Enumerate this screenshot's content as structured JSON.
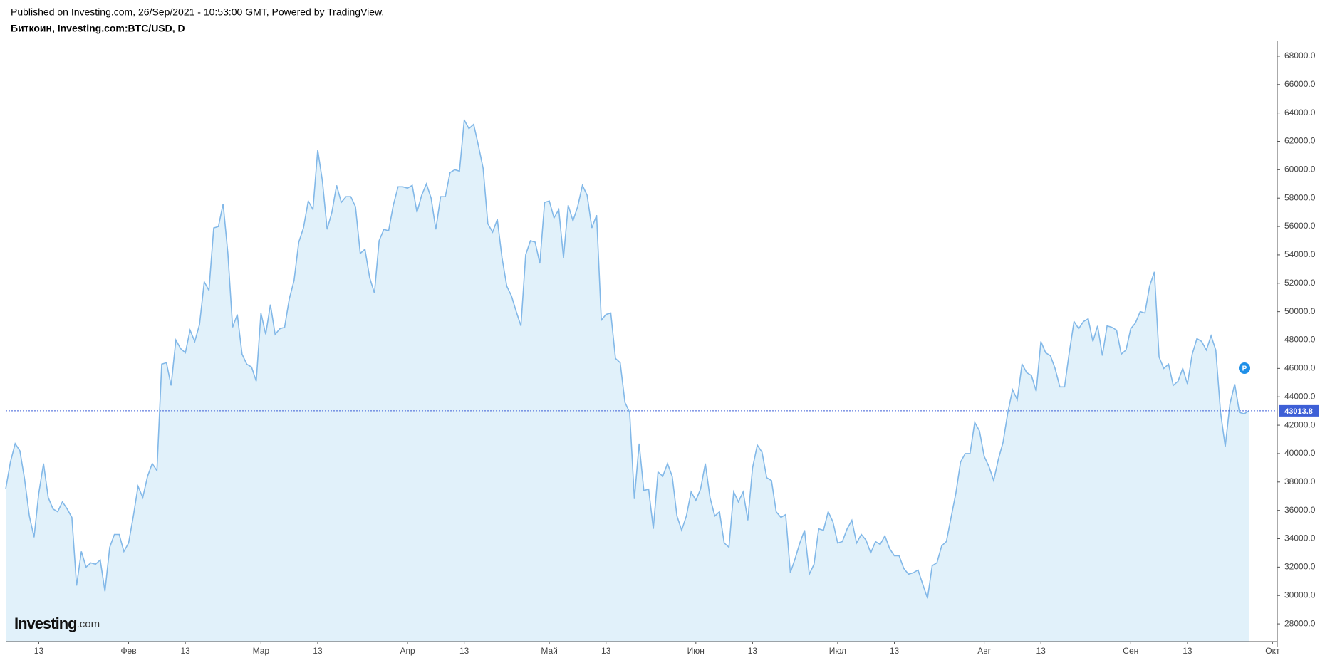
{
  "chart_data": {
    "type": "area",
    "published": "Published on Investing.com, 26/Sep/2021 - 10:53:00 GMT, Powered by TradingView.",
    "title": "Биткоин, Investing.com:BTC/USD, D",
    "logo": {
      "brand": "Investing",
      "suffix": ".com"
    },
    "color": "#82b8e8",
    "fill": "#e1f1fa",
    "last_line_color": "#3d5fd6",
    "x": [
      6,
      7,
      8,
      9,
      10,
      11,
      12,
      13,
      14,
      15,
      16,
      17,
      18,
      19,
      20,
      21,
      22,
      23,
      24,
      25,
      26,
      27,
      28,
      29,
      30,
      31,
      32,
      33,
      34,
      35,
      36,
      37,
      38,
      39,
      40,
      41,
      42,
      43,
      44,
      45,
      46,
      47,
      48,
      49,
      50,
      51,
      52,
      53,
      54,
      55,
      56,
      57,
      58,
      59,
      60,
      61,
      62,
      63,
      64,
      65,
      66,
      67,
      68,
      69,
      70,
      71,
      72,
      73,
      74,
      75,
      76,
      77,
      78,
      79,
      80,
      81,
      82,
      83,
      84,
      85,
      86,
      87,
      88,
      89,
      90,
      91,
      92,
      93,
      94,
      95,
      96,
      97,
      98,
      99,
      100,
      101,
      102,
      103,
      104,
      105,
      106,
      107,
      108,
      109,
      110,
      111,
      112,
      113,
      114,
      115,
      116,
      117,
      118,
      119,
      120,
      121,
      122,
      123,
      124,
      125,
      126,
      127,
      128,
      129,
      130,
      131,
      132,
      133,
      134,
      135,
      136,
      137,
      138,
      139,
      140,
      141,
      142,
      143,
      144,
      145,
      146,
      147,
      148,
      149,
      150,
      151,
      152,
      153,
      154,
      155,
      156,
      157,
      158,
      159,
      160,
      161,
      162,
      163,
      164,
      165,
      166,
      167,
      168,
      169,
      170,
      171,
      172,
      173,
      174,
      175,
      176,
      177,
      178,
      179,
      180,
      181,
      182,
      183,
      184,
      185,
      186,
      187,
      188,
      189,
      190,
      191,
      192,
      193,
      194,
      195,
      196,
      197,
      198,
      199,
      200,
      201,
      202,
      203,
      204,
      205,
      206,
      207,
      208,
      209,
      210,
      211,
      212,
      213,
      214,
      215,
      216,
      217,
      218,
      219,
      220,
      221,
      222,
      223,
      224,
      225,
      226,
      227,
      228,
      229,
      230,
      231,
      232,
      233,
      234,
      235,
      236,
      237,
      238,
      239,
      240,
      241,
      242,
      243,
      244,
      245,
      246,
      247,
      248,
      249,
      250,
      251,
      252,
      253,
      254,
      255,
      256,
      257,
      258,
      259,
      260,
      261,
      262,
      263,
      264,
      265,
      266,
      267,
      268,
      269
    ],
    "values": [
      37500,
      39400,
      40700,
      40200,
      38200,
      35600,
      34100,
      37200,
      39300,
      36900,
      36100,
      35900,
      36600,
      36100,
      35500,
      30700,
      33100,
      32000,
      32300,
      32200,
      32500,
      30300,
      33400,
      34300,
      34300,
      33100,
      33700,
      35600,
      37700,
      36900,
      38400,
      39300,
      38800,
      46300,
      46400,
      44800,
      48000,
      47400,
      47100,
      48700,
      47900,
      49100,
      52100,
      51500,
      55900,
      56000,
      57600,
      54100,
      48900,
      49800,
      47000,
      46300,
      46100,
      45100,
      49900,
      48400,
      50500,
      48400,
      48800,
      48900,
      50900,
      52200,
      54900,
      55900,
      57800,
      57200,
      61400,
      59200,
      55800,
      57000,
      58900,
      57700,
      58100,
      58100,
      57400,
      54100,
      54400,
      52400,
      51300,
      55000,
      55800,
      55700,
      57500,
      58800,
      58800,
      58700,
      58900,
      57000,
      58200,
      59000,
      58000,
      55800,
      58100,
      58100,
      59800,
      60000,
      59900,
      63500,
      62900,
      63200,
      61700,
      60100,
      56200,
      55600,
      56500,
      53800,
      51800,
      51100,
      50000,
      49000,
      54000,
      55000,
      54900,
      53400,
      57700,
      57800,
      56600,
      57200,
      53800,
      57500,
      56400,
      57400,
      58900,
      58200,
      55900,
      56800,
      49400,
      49800,
      49900,
      46700,
      46400,
      43600,
      42900,
      36800,
      40700,
      37400,
      37500,
      34700,
      38700,
      38400,
      39300,
      38400,
      35600,
      34600,
      35600,
      37300,
      36700,
      37500,
      39300,
      36900,
      35600,
      35900,
      33700,
      33400,
      37300,
      36600,
      37300,
      35300,
      39000,
      40600,
      40100,
      38300,
      38100,
      35900,
      35500,
      35700,
      31600,
      32600,
      33700,
      34600,
      31500,
      32200,
      34700,
      34600,
      35900,
      35200,
      33700,
      33800,
      34700,
      35300,
      33700,
      34300,
      33900,
      33000,
      33800,
      33600,
      34200,
      33300,
      32800,
      32800,
      31900,
      31500,
      31600,
      31800,
      30800,
      29800,
      32100,
      32300,
      33500,
      33800,
      35500,
      37200,
      39400,
      40000,
      40000,
      42200,
      41600,
      39800,
      39100,
      38100,
      39600,
      40800,
      42900,
      44500,
      43800,
      46300,
      45700,
      45500,
      44400,
      47900,
      47100,
      46900,
      46000,
      44700,
      44700,
      47100,
      49300,
      48800,
      49300,
      49500,
      47900,
      49000,
      46900,
      49000,
      48900,
      48700,
      47000,
      47300,
      48800,
      49200,
      50000,
      49900,
      51800,
      52800,
      46800,
      46000,
      46300,
      44800,
      45100,
      46000,
      44900,
      47000,
      48100,
      47900,
      47300,
      48300,
      47300,
      42900,
      40500,
      43500,
      44900,
      42900,
      42800,
      43013.8
    ],
    "xlim": [
      6,
      275
    ],
    "xticks": [
      {
        "value": 13,
        "label": "13"
      },
      {
        "value": 32,
        "label": "Фев"
      },
      {
        "value": 44,
        "label": "13"
      },
      {
        "value": 60,
        "label": "Мар"
      },
      {
        "value": 72,
        "label": "13"
      },
      {
        "value": 91,
        "label": "Апр"
      },
      {
        "value": 103,
        "label": "13"
      },
      {
        "value": 121,
        "label": "Май"
      },
      {
        "value": 133,
        "label": "13"
      },
      {
        "value": 152,
        "label": "Июн"
      },
      {
        "value": 164,
        "label": "13"
      },
      {
        "value": 182,
        "label": "Июл"
      },
      {
        "value": 194,
        "label": "13"
      },
      {
        "value": 213,
        "label": "Авг"
      },
      {
        "value": 225,
        "label": "13"
      },
      {
        "value": 244,
        "label": "Сен"
      },
      {
        "value": 256,
        "label": "13"
      },
      {
        "value": 274,
        "label": "Окт"
      }
    ],
    "ylim": [
      26750,
      69100
    ],
    "yticks": [
      {
        "value": 28000,
        "label": "28000.0"
      },
      {
        "value": 30000,
        "label": "30000.0"
      },
      {
        "value": 32000,
        "label": "32000.0"
      },
      {
        "value": 34000,
        "label": "34000.0"
      },
      {
        "value": 36000,
        "label": "36000.0"
      },
      {
        "value": 38000,
        "label": "38000.0"
      },
      {
        "value": 40000,
        "label": "40000.0"
      },
      {
        "value": 42000,
        "label": "42000.0"
      },
      {
        "value": 44000,
        "label": "44000.0"
      },
      {
        "value": 46000,
        "label": "46000.0"
      },
      {
        "value": 48000,
        "label": "48000.0"
      },
      {
        "value": 50000,
        "label": "50000.0"
      },
      {
        "value": 52000,
        "label": "52000.0"
      },
      {
        "value": 54000,
        "label": "54000.0"
      },
      {
        "value": 56000,
        "label": "56000.0"
      },
      {
        "value": 58000,
        "label": "58000.0"
      },
      {
        "value": 60000,
        "label": "60000.0"
      },
      {
        "value": 62000,
        "label": "62000.0"
      },
      {
        "value": 64000,
        "label": "64000.0"
      },
      {
        "value": 66000,
        "label": "66000.0"
      },
      {
        "value": 68000,
        "label": "68000.0"
      }
    ],
    "grid": false
  }
}
